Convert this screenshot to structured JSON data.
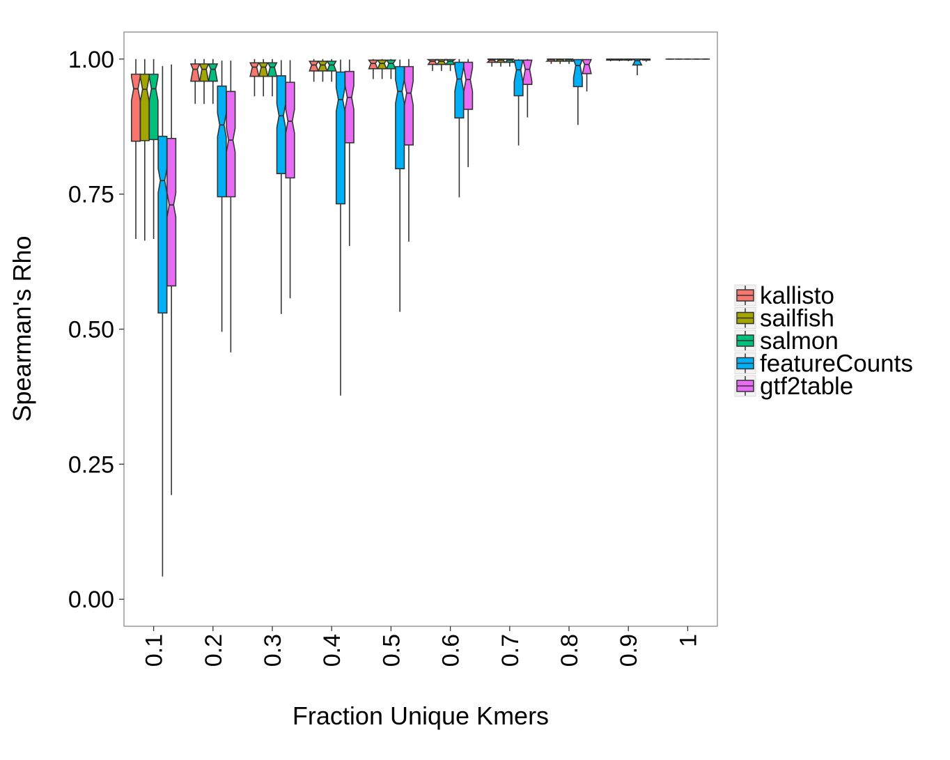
{
  "chart_data": {
    "type": "boxplot",
    "notched": true,
    "xlabel": "Fraction Unique Kmers",
    "ylabel": "Spearman's Rho",
    "categories": [
      "0.1",
      "0.2",
      "0.3",
      "0.4",
      "0.5",
      "0.6",
      "0.7",
      "0.8",
      "0.9",
      "1"
    ],
    "ylim": [
      -0.05,
      1.05
    ],
    "yticks": [
      0.0,
      0.25,
      0.5,
      0.75,
      1.0
    ],
    "ytick_labels": [
      "0.00",
      "0.25",
      "0.50",
      "0.75",
      "1.00"
    ],
    "grid": false,
    "legend_position": "right",
    "series": [
      {
        "name": "kallisto",
        "color": "#F8766D",
        "boxes": [
          {
            "whislo": 0.667,
            "q1": 0.848,
            "med": 0.945,
            "q3": 0.972,
            "whishi": 1.0
          },
          {
            "whislo": 0.917,
            "q1": 0.959,
            "med": 0.981,
            "q3": 0.991,
            "whishi": 1.0
          },
          {
            "whislo": 0.931,
            "q1": 0.968,
            "med": 0.985,
            "q3": 0.993,
            "whishi": 1.0
          },
          {
            "whislo": 0.958,
            "q1": 0.978,
            "med": 0.989,
            "q3": 0.996,
            "whishi": 1.0
          },
          {
            "whislo": 0.963,
            "q1": 0.982,
            "med": 0.992,
            "q3": 0.998,
            "whishi": 1.0
          },
          {
            "whislo": 0.978,
            "q1": 0.99,
            "med": 0.996,
            "q3": 0.999,
            "whishi": 1.0
          },
          {
            "whislo": 0.986,
            "q1": 0.994,
            "med": 0.998,
            "q3": 1.0,
            "whishi": 1.0
          },
          {
            "whislo": 0.991,
            "q1": 0.996,
            "med": 0.999,
            "q3": 1.0,
            "whishi": 1.0
          },
          {
            "whislo": 0.996,
            "q1": 0.998,
            "med": 0.999,
            "q3": 1.0,
            "whishi": 1.0
          },
          {
            "whislo": 0.999,
            "q1": 1.0,
            "med": 1.0,
            "q3": 1.0,
            "whishi": 1.0
          }
        ]
      },
      {
        "name": "sailfish",
        "color": "#A3A500",
        "boxes": [
          {
            "whislo": 0.664,
            "q1": 0.849,
            "med": 0.944,
            "q3": 0.972,
            "whishi": 1.0
          },
          {
            "whislo": 0.917,
            "q1": 0.959,
            "med": 0.981,
            "q3": 0.991,
            "whishi": 1.0
          },
          {
            "whislo": 0.931,
            "q1": 0.968,
            "med": 0.985,
            "q3": 0.993,
            "whishi": 1.0
          },
          {
            "whislo": 0.958,
            "q1": 0.978,
            "med": 0.989,
            "q3": 0.996,
            "whishi": 1.0
          },
          {
            "whislo": 0.963,
            "q1": 0.982,
            "med": 0.992,
            "q3": 0.998,
            "whishi": 1.0
          },
          {
            "whislo": 0.978,
            "q1": 0.99,
            "med": 0.996,
            "q3": 0.999,
            "whishi": 1.0
          },
          {
            "whislo": 0.986,
            "q1": 0.994,
            "med": 0.998,
            "q3": 1.0,
            "whishi": 1.0
          },
          {
            "whislo": 0.991,
            "q1": 0.996,
            "med": 0.999,
            "q3": 1.0,
            "whishi": 1.0
          },
          {
            "whislo": 0.996,
            "q1": 0.998,
            "med": 0.999,
            "q3": 1.0,
            "whishi": 1.0
          },
          {
            "whislo": 0.999,
            "q1": 1.0,
            "med": 1.0,
            "q3": 1.0,
            "whishi": 1.0
          }
        ]
      },
      {
        "name": "salmon",
        "color": "#00BF7D",
        "boxes": [
          {
            "whislo": 0.667,
            "q1": 0.851,
            "med": 0.945,
            "q3": 0.972,
            "whishi": 1.0
          },
          {
            "whislo": 0.917,
            "q1": 0.959,
            "med": 0.981,
            "q3": 0.991,
            "whishi": 1.0
          },
          {
            "whislo": 0.931,
            "q1": 0.968,
            "med": 0.985,
            "q3": 0.993,
            "whishi": 1.0
          },
          {
            "whislo": 0.958,
            "q1": 0.978,
            "med": 0.989,
            "q3": 0.996,
            "whishi": 1.0
          },
          {
            "whislo": 0.963,
            "q1": 0.982,
            "med": 0.992,
            "q3": 0.998,
            "whishi": 1.0
          },
          {
            "whislo": 0.978,
            "q1": 0.99,
            "med": 0.996,
            "q3": 0.999,
            "whishi": 1.0
          },
          {
            "whislo": 0.986,
            "q1": 0.994,
            "med": 0.998,
            "q3": 1.0,
            "whishi": 1.0
          },
          {
            "whislo": 0.991,
            "q1": 0.996,
            "med": 0.999,
            "q3": 1.0,
            "whishi": 1.0
          },
          {
            "whislo": 0.996,
            "q1": 0.998,
            "med": 0.999,
            "q3": 1.0,
            "whishi": 1.0
          },
          {
            "whislo": 0.999,
            "q1": 1.0,
            "med": 1.0,
            "q3": 1.0,
            "whishi": 1.0
          }
        ]
      },
      {
        "name": "featureCounts",
        "color": "#00B0F6",
        "boxes": [
          {
            "whislo": 0.042,
            "q1": 0.53,
            "med": 0.775,
            "q3": 0.857,
            "whishi": 0.987
          },
          {
            "whislo": 0.495,
            "q1": 0.745,
            "med": 0.878,
            "q3": 0.95,
            "whishi": 0.997
          },
          {
            "whislo": 0.528,
            "q1": 0.788,
            "med": 0.895,
            "q3": 0.969,
            "whishi": 0.998
          },
          {
            "whislo": 0.377,
            "q1": 0.732,
            "med": 0.925,
            "q3": 0.976,
            "whishi": 0.999
          },
          {
            "whislo": 0.532,
            "q1": 0.797,
            "med": 0.94,
            "q3": 0.986,
            "whishi": 0.999
          },
          {
            "whislo": 0.744,
            "q1": 0.891,
            "med": 0.963,
            "q3": 0.994,
            "whishi": 1.0
          },
          {
            "whislo": 0.84,
            "q1": 0.932,
            "med": 0.98,
            "q3": 0.998,
            "whishi": 1.0
          },
          {
            "whislo": 0.878,
            "q1": 0.949,
            "med": 0.988,
            "q3": 0.999,
            "whishi": 1.0
          },
          {
            "whislo": 0.97,
            "q1": 0.989,
            "med": 0.997,
            "q3": 1.0,
            "whishi": 1.0
          },
          {
            "whislo": 0.999,
            "q1": 1.0,
            "med": 1.0,
            "q3": 1.0,
            "whishi": 1.0
          }
        ]
      },
      {
        "name": "gtf2table",
        "color": "#E76BF3",
        "boxes": [
          {
            "whislo": 0.193,
            "q1": 0.58,
            "med": 0.73,
            "q3": 0.853,
            "whishi": 0.99
          },
          {
            "whislo": 0.457,
            "q1": 0.745,
            "med": 0.85,
            "q3": 0.94,
            "whishi": 0.997
          },
          {
            "whislo": 0.557,
            "q1": 0.78,
            "med": 0.885,
            "q3": 0.957,
            "whishi": 0.998
          },
          {
            "whislo": 0.654,
            "q1": 0.845,
            "med": 0.929,
            "q3": 0.977,
            "whishi": 0.999
          },
          {
            "whislo": 0.662,
            "q1": 0.841,
            "med": 0.937,
            "q3": 0.986,
            "whishi": 1.0
          },
          {
            "whislo": 0.8,
            "q1": 0.907,
            "med": 0.962,
            "q3": 0.994,
            "whishi": 1.0
          },
          {
            "whislo": 0.892,
            "q1": 0.953,
            "med": 0.981,
            "q3": 0.998,
            "whishi": 1.0
          },
          {
            "whislo": 0.94,
            "q1": 0.973,
            "med": 0.99,
            "q3": 0.999,
            "whishi": 1.0
          },
          {
            "whislo": 0.995,
            "q1": 0.998,
            "med": 0.999,
            "q3": 1.0,
            "whishi": 1.0
          },
          {
            "whislo": 0.999,
            "q1": 1.0,
            "med": 1.0,
            "q3": 1.0,
            "whishi": 1.0
          }
        ]
      }
    ]
  }
}
